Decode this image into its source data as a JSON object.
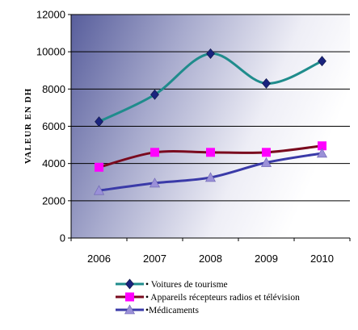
{
  "chart_data": {
    "type": "line",
    "title": "",
    "xlabel": "",
    "ylabel": "VALEUR EN DH",
    "categories": [
      "2006",
      "2007",
      "2008",
      "2009",
      "2010"
    ],
    "ylim": [
      0,
      12000
    ],
    "yticks": [
      "0",
      "2000",
      "4000",
      "6000",
      "8000",
      "10000",
      "12000"
    ],
    "grid": "horizontal",
    "legend_position": "bottom",
    "series": [
      {
        "name": "• Voitures de tourisme",
        "values": [
          6250,
          7700,
          9900,
          8300,
          9500
        ],
        "color": "#1f8c8c",
        "marker_color": "#1a237e",
        "marker": "diamond"
      },
      {
        "name": "• Appareils récepteurs radios et télévision",
        "values": [
          3800,
          4600,
          4600,
          4600,
          4950
        ],
        "color": "#7a0a1e",
        "marker_color": "#ff00ff",
        "marker": "square"
      },
      {
        "name": "•Médicaments",
        "values": [
          2550,
          2950,
          3250,
          4050,
          4550
        ],
        "color": "#3a3aa8",
        "marker_color": "#9a90d8",
        "marker": "triangle"
      }
    ]
  }
}
